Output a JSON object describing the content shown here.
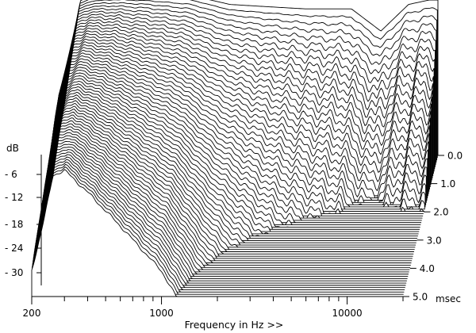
{
  "chart_data": {
    "type": "waterfall",
    "title": "",
    "xlabel": "Frequency in Hz >>",
    "ylabel": "dB",
    "zlabel": "msec",
    "x_scale": "log",
    "xlim": [
      200,
      20000
    ],
    "x_tick_labels": [
      {
        "value": 200,
        "label": "200"
      },
      {
        "value": 1000,
        "label": "1000"
      },
      {
        "value": 10000,
        "label": "10000"
      }
    ],
    "y_tick_labels": [
      {
        "value": -6,
        "label": "- 6"
      },
      {
        "value": -12,
        "label": "- 12"
      },
      {
        "value": -18,
        "label": "- 18"
      },
      {
        "value": -24,
        "label": "- 24"
      },
      {
        "value": -30,
        "label": "- 30"
      }
    ],
    "ylim": [
      -34,
      6
    ],
    "time_tick_labels": [
      {
        "value": 0,
        "label": "0.0"
      },
      {
        "value": 1,
        "label": "1.0"
      },
      {
        "value": 2,
        "label": "2.0"
      },
      {
        "value": 3,
        "label": "3.0"
      },
      {
        "value": 4,
        "label": "4.0"
      },
      {
        "value": 5,
        "label": "5.0"
      }
    ],
    "time_unit_label": "msec",
    "time_range_ms": [
      0,
      5
    ],
    "slice_count": 64,
    "slice_step_ms": 0.08,
    "initial_response_db": [
      {
        "f": 250,
        "db": 0.5
      },
      {
        "f": 300,
        "db": 2
      },
      {
        "f": 400,
        "db": 2.5
      },
      {
        "f": 600,
        "db": 2.5
      },
      {
        "f": 1000,
        "db": 2
      },
      {
        "f": 1600,
        "db": 0
      },
      {
        "f": 2500,
        "db": -0.5
      },
      {
        "f": 4000,
        "db": -1
      },
      {
        "f": 7000,
        "db": -1
      },
      {
        "f": 10000,
        "db": -6
      },
      {
        "f": 14000,
        "db": 0
      },
      {
        "f": 18000,
        "db": 1
      }
    ],
    "decay_rate_db_per_ms": [
      {
        "f": 300,
        "rate": 1.5
      },
      {
        "f": 1000,
        "rate": 6
      },
      {
        "f": 3000,
        "rate": 12
      },
      {
        "f": 10000,
        "rate": 18
      }
    ],
    "floor_db": -34,
    "grid": false,
    "legend": "none"
  }
}
